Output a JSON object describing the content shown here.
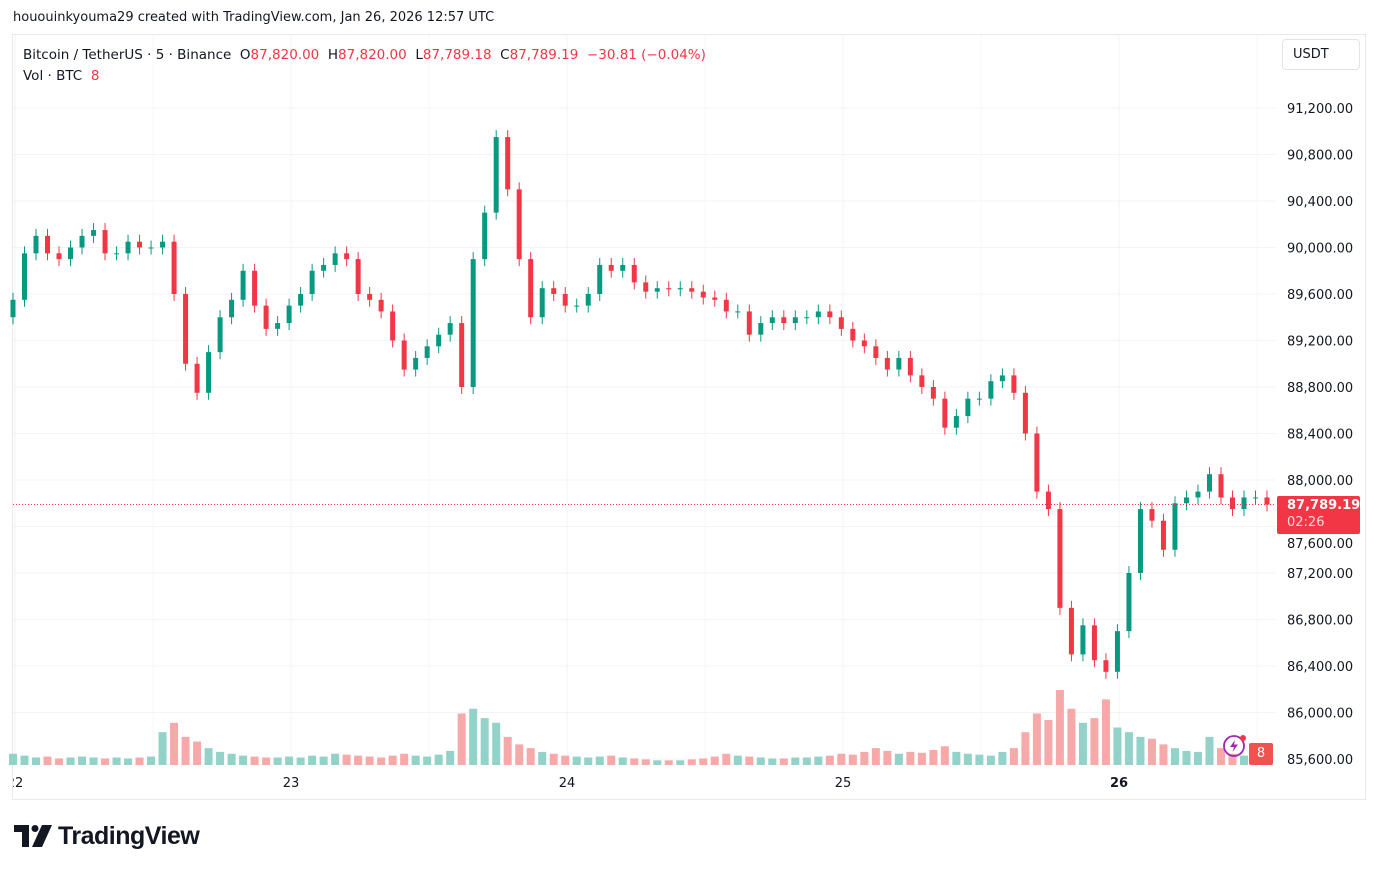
{
  "credit": "hououinkyouma29 created with TradingView.com, Jan 26, 2026 12:57 UTC",
  "legend": {
    "symbol": "Bitcoin / TetherUS · 5 · Binance",
    "open_label": "O",
    "open": "87,820.00",
    "high_label": "H",
    "high": "87,820.00",
    "low_label": "L",
    "low": "87,789.18",
    "close_label": "C",
    "close": "87,789.19",
    "change": "−30.81 (−0.04%)",
    "volume_label": "Vol · BTC",
    "volume": "8"
  },
  "currency_button": "USDT",
  "last_price": {
    "price": "87,789.19",
    "countdown": "02:26"
  },
  "volume_badge": "8",
  "brand": "TradingView",
  "colors": {
    "up": "#089981",
    "down": "#f23645",
    "up_volume": "#92d2c8",
    "down_volume": "#f7a9a9"
  },
  "chart_data": {
    "type": "candlestick",
    "ylim": [
      85550,
      91400
    ],
    "y_ticks": [
      "91,200.00",
      "90,800.00",
      "90,400.00",
      "90,000.00",
      "89,600.00",
      "89,200.00",
      "88,800.00",
      "88,400.00",
      "88,000.00",
      "87,600.00",
      "87,200.00",
      "86,800.00",
      "86,400.00",
      "86,000.00",
      "85,600.00"
    ],
    "x_ticks": [
      {
        "label": "22",
        "day": 22
      },
      {
        "label": "23",
        "day": 23
      },
      {
        "label": "24",
        "day": 24
      },
      {
        "label": "25",
        "day": 25
      },
      {
        "label": "26",
        "day": 26,
        "bold": true
      }
    ],
    "xlim_days": [
      22.0,
      26.54
    ],
    "grid": true,
    "closes": [
      89550,
      89950,
      90100,
      89950,
      89900,
      90000,
      90100,
      90150,
      89950,
      89950,
      90050,
      90000,
      90000,
      90050,
      89600,
      89000,
      88750,
      89100,
      89400,
      89550,
      89800,
      89500,
      89300,
      89350,
      89500,
      89600,
      89800,
      89850,
      89950,
      89900,
      89600,
      89550,
      89450,
      89200,
      88950,
      89050,
      89150,
      89250,
      89350,
      88800,
      89900,
      90300,
      90950,
      90500,
      89900,
      89400,
      89650,
      89600,
      89500,
      89500,
      89600,
      89850,
      89800,
      89850,
      89700,
      89620,
      89650,
      89640,
      89650,
      89620,
      89570,
      89550,
      89450,
      89450,
      89250,
      89350,
      89400,
      89350,
      89400,
      89400,
      89450,
      89400,
      89300,
      89200,
      89150,
      89050,
      88950,
      89050,
      88900,
      88800,
      88700,
      88450,
      88550,
      88700,
      88700,
      88850,
      88900,
      88750,
      88400,
      87900,
      87750,
      86900,
      86500,
      86750,
      86450,
      86350,
      86700,
      87200,
      87750,
      87650,
      87400,
      87800,
      87850,
      87900,
      88050,
      87850,
      87750,
      87850,
      87850,
      87789.19
    ],
    "volumes": [
      12,
      10,
      8,
      9,
      7,
      8,
      9,
      8,
      7,
      8,
      7,
      8,
      9,
      35,
      45,
      30,
      25,
      18,
      14,
      12,
      10,
      9,
      8,
      8,
      9,
      8,
      10,
      9,
      12,
      11,
      10,
      9,
      8,
      10,
      12,
      10,
      9,
      11,
      15,
      55,
      60,
      50,
      45,
      30,
      22,
      18,
      14,
      12,
      10,
      9,
      8,
      9,
      10,
      8,
      7,
      6,
      5,
      5,
      5,
      6,
      7,
      9,
      12,
      10,
      9,
      8,
      7,
      7,
      8,
      8,
      9,
      10,
      12,
      11,
      14,
      18,
      15,
      12,
      14,
      13,
      16,
      20,
      14,
      12,
      11,
      10,
      14,
      18,
      35,
      55,
      48,
      80,
      60,
      45,
      50,
      70,
      40,
      35,
      30,
      28,
      22,
      18,
      15,
      14,
      30,
      18,
      12,
      10,
      9,
      3
    ],
    "current_price": 87789.19
  }
}
